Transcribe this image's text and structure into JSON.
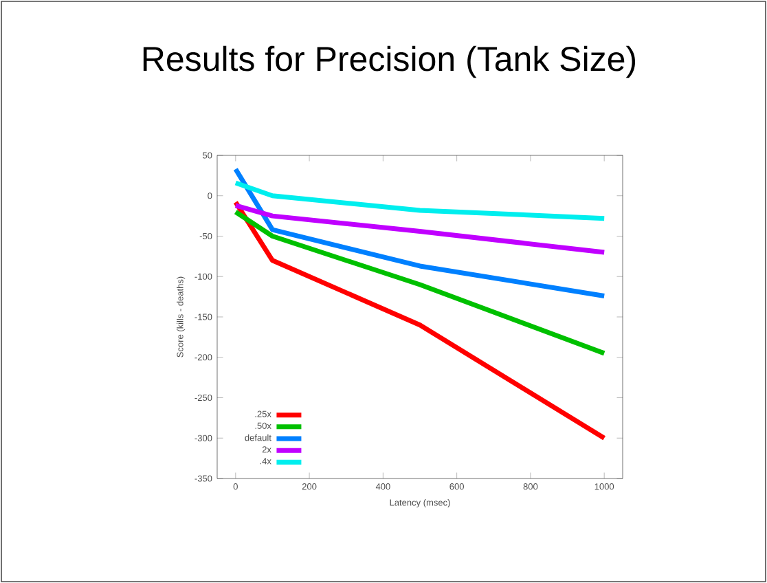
{
  "chart_data": {
    "type": "line",
    "title": "Results for Precision (Tank Size)",
    "xlabel": "Latency (msec)",
    "ylabel": "Score (kills - deaths)",
    "x": [
      0,
      100,
      500,
      1000
    ],
    "series": [
      {
        "name": ".25x",
        "color": "#ff0000",
        "values": [
          -8,
          -80,
          -160,
          -300
        ]
      },
      {
        "name": ".50x",
        "color": "#00c000",
        "values": [
          -20,
          -50,
          -110,
          -195
        ]
      },
      {
        "name": "default",
        "color": "#0080ff",
        "values": [
          33,
          -42,
          -87,
          -124
        ]
      },
      {
        "name": "2x",
        "color": "#c000ff",
        "values": [
          -12,
          -25,
          -44,
          -70
        ]
      },
      {
        "name": ".4x",
        "color": "#00eeee",
        "values": [
          16,
          0,
          -18,
          -28
        ]
      }
    ],
    "xlim": [
      -50,
      1050
    ],
    "ylim": [
      -350,
      50
    ],
    "xticks": [
      0,
      200,
      400,
      600,
      800,
      1000
    ],
    "yticks": [
      -350,
      -300,
      -250,
      -200,
      -150,
      -100,
      -50,
      0,
      50
    ],
    "grid": false,
    "legend": "bottom left",
    "marker": "none",
    "line_style": "solid"
  }
}
